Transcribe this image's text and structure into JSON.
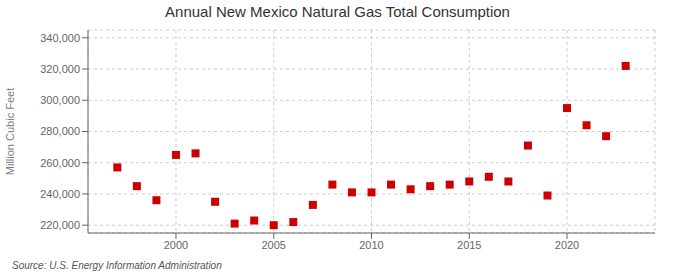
{
  "chart_data": {
    "type": "scatter",
    "title": "Annual New Mexico Natural Gas Total Consumption",
    "ylabel": "Million Cubic Feet",
    "annotation": "Source: U.S. Energy Information Administration",
    "x": [
      1997,
      1998,
      1999,
      2000,
      2001,
      2002,
      2003,
      2004,
      2005,
      2006,
      2007,
      2008,
      2009,
      2010,
      2011,
      2012,
      2013,
      2014,
      2015,
      2016,
      2017,
      2018,
      2019,
      2020,
      2021,
      2022,
      2023
    ],
    "values": [
      257000,
      245000,
      236000,
      265000,
      266000,
      235000,
      221000,
      223000,
      220000,
      222000,
      233000,
      246000,
      241000,
      241000,
      246000,
      243000,
      245000,
      246000,
      248000,
      251000,
      248000,
      271000,
      239000,
      295000,
      284000,
      277000,
      322000
    ],
    "color": "#cc0000",
    "marker": "square",
    "xlim": [
      1995.5,
      2024.5
    ],
    "ylim": [
      215000,
      345000
    ],
    "xticks": [
      2000,
      2005,
      2010,
      2015,
      2020
    ],
    "yticks": [
      {
        "value": 220000,
        "label": "220,000"
      },
      {
        "value": 240000,
        "label": "240,000"
      },
      {
        "value": 260000,
        "label": "260,000"
      },
      {
        "value": 280000,
        "label": "280,000"
      },
      {
        "value": 300000,
        "label": "300,000"
      },
      {
        "value": 320000,
        "label": "320,000"
      },
      {
        "value": 340000,
        "label": "340,000"
      }
    ],
    "grid": true
  }
}
